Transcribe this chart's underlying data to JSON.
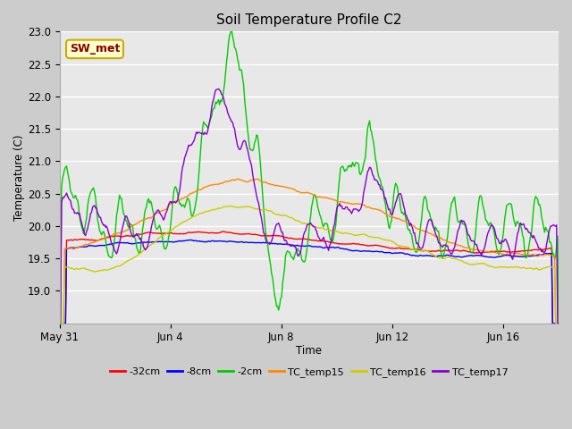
{
  "title": "Soil Temperature Profile C2",
  "xlabel": "Time",
  "ylabel": "Temperature (C)",
  "ylim": [
    18.5,
    23.0
  ],
  "yticks": [
    19.0,
    19.5,
    20.0,
    20.5,
    21.0,
    21.5,
    22.0,
    22.5,
    23.0
  ],
  "xtick_labels": [
    "May 31",
    "Jun 4",
    "Jun 8",
    "Jun 12",
    "Jun 16"
  ],
  "xtick_positions": [
    0,
    4,
    8,
    12,
    16
  ],
  "xlim": [
    0,
    18
  ],
  "legend_labels": [
    "-32cm",
    "-8cm",
    "-2cm",
    "TC_temp15",
    "TC_temp16",
    "TC_temp17"
  ],
  "line_colors": [
    "#ff0000",
    "#0000ff",
    "#00cc00",
    "#ff8800",
    "#cccc00",
    "#8800cc"
  ],
  "annotation_text": "SW_met",
  "annotation_bg": "#ffffcc",
  "annotation_border": "#ccaa00",
  "annotation_text_color": "#880000",
  "fig_bg_color": "#cccccc",
  "plot_bg_color": "#e8e8e8",
  "grid_color": "#ffffff",
  "n_points": 500
}
